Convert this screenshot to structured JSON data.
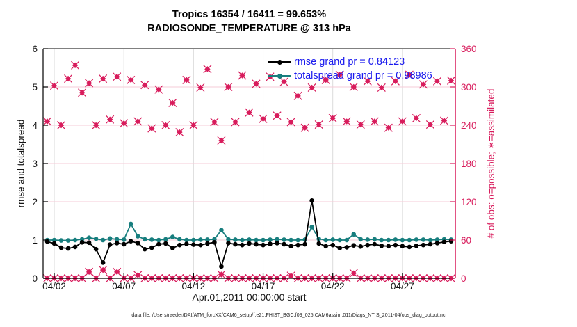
{
  "titles": {
    "line1": "Tropics 16354 / 16411 = 99.653%",
    "line2": "RADIOSONDE_TEMPERATURE @ 313 hPa"
  },
  "axes": {
    "left_label": "rmse and totalspread",
    "right_label": "# of obs: o=possible; ∗=assimilated",
    "x_label": "Apr.01,2011 00:00:00 start"
  },
  "footer": {
    "data_file": "data file: /Users/raeder/DAI/ATM_forcXX/CAM6_setup/f.e21.FHIST_BGC.f09_025.CAM6assim.011/Diags_NTrS_2011-04/obs_diag_output.nc"
  },
  "legend": [
    {
      "label": "rmse grand pr = 0.84123",
      "color": "#000000"
    },
    {
      "label": "totalspread grand pr = 0.98986",
      "color": "#177E7E"
    }
  ],
  "colors": {
    "accent_pink": "#D81C5C",
    "teal": "#177E7E",
    "black": "#000000",
    "legend_text": "#1A1AEE",
    "grid_vertical": "#DBDBDB",
    "grid_horizontal": "#F5CBD7",
    "tick_text": "#141414"
  },
  "chart_data": {
    "type": "line",
    "title": "Tropics 16354 / 16411 = 99.653% | RADIOSONDE_TEMPERATURE @ 313 hPa",
    "xlabel": "Apr.01,2011 00:00:00 start",
    "x_units": "day of April 2011, 12-hourly bins",
    "x_range": [
      1.2,
      30.8
    ],
    "xticks": [
      {
        "day": 2,
        "label": "04/02"
      },
      {
        "day": 7,
        "label": "04/07"
      },
      {
        "day": 12,
        "label": "04/12"
      },
      {
        "day": 17,
        "label": "04/17"
      },
      {
        "day": 22,
        "label": "04/22"
      },
      {
        "day": 27,
        "label": "04/27"
      }
    ],
    "left_axis": {
      "label": "rmse and totalspread",
      "range": [
        0,
        6
      ],
      "ticks": [
        0,
        1,
        2,
        3,
        4,
        5,
        6
      ]
    },
    "right_axis": {
      "label": "# of obs: o=possible; ∗=assimilated",
      "range": [
        0,
        360
      ],
      "ticks": [
        0,
        60,
        120,
        180,
        240,
        300,
        360
      ]
    },
    "grid": {
      "vertical_at_xticks": true,
      "horizontal_at_right_ticks": [
        60,
        120,
        180,
        240,
        300
      ]
    },
    "legend_position": "upper center-right, no box",
    "x": [
      1.5,
      2,
      2.5,
      3,
      3.5,
      4,
      4.5,
      5,
      5.5,
      6,
      6.5,
      7,
      7.5,
      8,
      8.5,
      9,
      9.5,
      10,
      10.5,
      11,
      11.5,
      12,
      12.5,
      13,
      13.5,
      14,
      14.5,
      15,
      15.5,
      16,
      16.5,
      17,
      17.5,
      18,
      18.5,
      19,
      19.5,
      20,
      20.5,
      21,
      21.5,
      22,
      22.5,
      23,
      23.5,
      24,
      24.5,
      25,
      25.5,
      26,
      26.5,
      27,
      27.5,
      28,
      28.5,
      29,
      29.5,
      30,
      30.5
    ],
    "series": [
      {
        "name": "rmse",
        "legend": "rmse grand pr = 0.84123",
        "axis": "left",
        "color": "#000000",
        "marker": "dot-line",
        "values": [
          0.96,
          0.91,
          0.8,
          0.78,
          0.82,
          0.94,
          0.93,
          0.76,
          0.41,
          0.88,
          0.92,
          0.89,
          0.97,
          0.92,
          0.76,
          0.8,
          0.89,
          0.91,
          0.79,
          0.87,
          0.9,
          0.88,
          0.87,
          0.91,
          0.94,
          0.31,
          0.92,
          0.89,
          0.87,
          0.91,
          0.89,
          0.87,
          0.9,
          0.92,
          0.89,
          0.84,
          0.87,
          0.89,
          2.03,
          0.91,
          0.84,
          0.87,
          0.79,
          0.81,
          0.86,
          0.83,
          0.87,
          0.89,
          0.85,
          0.84,
          0.87,
          0.84,
          0.82,
          0.85,
          0.87,
          0.89,
          0.92,
          0.95,
          0.97
        ]
      },
      {
        "name": "totalspread",
        "legend": "totalspread grand pr = 0.98986",
        "axis": "left",
        "color": "#177E7E",
        "marker": "dot-line",
        "values": [
          1.0,
          1.0,
          0.99,
          0.99,
          1.0,
          1.02,
          1.06,
          1.03,
          1.0,
          1.04,
          1.02,
          1.01,
          1.42,
          1.1,
          1.02,
          1.01,
          1.0,
          1.02,
          1.08,
          1.02,
          1.0,
          1.0,
          1.01,
          1.01,
          1.02,
          1.26,
          1.02,
          1.01,
          1.0,
          1.01,
          1.0,
          1.0,
          1.01,
          1.02,
          1.01,
          1.0,
          1.0,
          1.01,
          1.34,
          1.03,
          1.0,
          1.01,
          1.0,
          1.0,
          1.15,
          1.02,
          1.01,
          1.02,
          1.0,
          1.0,
          1.01,
          1.0,
          1.0,
          1.01,
          1.01,
          1.0,
          1.01,
          1.02,
          1.01
        ]
      },
      {
        "name": "num_obs_upper",
        "axis": "right",
        "color": "#D81C5C",
        "marker": "diamond-x",
        "values": [
          246,
          302,
          240,
          313,
          334,
          291,
          306,
          240,
          313,
          249,
          316,
          243,
          311,
          246,
          303,
          235,
          296,
          240,
          275,
          229,
          311,
          240,
          299,
          328,
          245,
          216,
          300,
          245,
          318,
          260,
          305,
          250,
          316,
          255,
          308,
          245,
          286,
          236,
          299,
          241,
          311,
          251,
          319,
          246,
          300,
          241,
          309,
          246,
          299,
          236,
          309,
          246,
          319,
          251,
          304,
          241,
          309,
          247,
          310
        ]
      },
      {
        "name": "num_obs_lower",
        "axis": "right",
        "color": "#D81C5C",
        "marker": "diamond-x",
        "values": [
          0,
          0,
          0,
          0,
          0,
          0,
          10,
          0,
          13,
          0,
          10,
          0,
          0,
          5,
          0,
          0,
          0,
          0,
          0,
          0,
          0,
          0,
          0,
          0,
          0,
          6,
          0,
          0,
          0,
          0,
          0,
          0,
          0,
          0,
          0,
          4,
          0,
          0,
          0,
          0,
          0,
          0,
          0,
          0,
          8,
          0,
          0,
          0,
          0,
          0,
          0,
          0,
          0,
          0,
          0,
          0,
          0,
          0,
          0
        ]
      }
    ]
  }
}
